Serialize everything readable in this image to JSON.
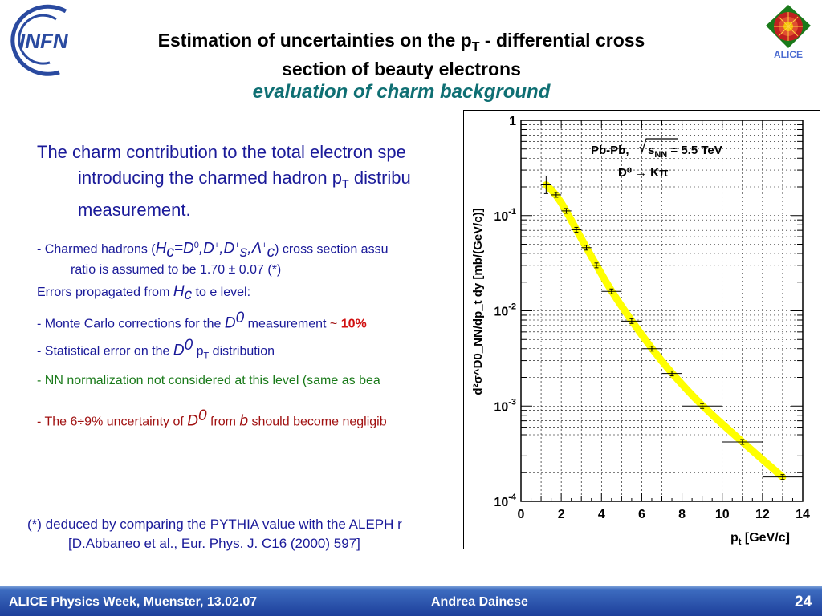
{
  "header": {
    "title_part1": "Estimation of uncertainties on the p",
    "title_sub": "T",
    "title_part2": " - differential cross",
    "title_line2": "section of beauty electrons",
    "subtitle": "evaluation of charm background",
    "infn_logo_text": "INFN",
    "alice_logo_text": "ALICE"
  },
  "main_text": {
    "line1": "The charm contribution to the total electron spe",
    "line2_a": "introducing the charmed hadron p",
    "line2_sub": "T",
    "line2_b": " distribu",
    "line3": "measurement."
  },
  "bullets": {
    "b1_prefix": "- Charmed hadrons (",
    "b1_hc": "H",
    "b1_hc_sub": "c",
    "b1_eq": "=D",
    "b1_sup0": "0",
    "b1_d": ",D",
    "b1_supplus": "+",
    "b1_d2": ",D",
    "b1_supplus2": "+",
    "b1_sub_s": "s",
    "b1_lambda": ",Λ",
    "b1_supplus3": "+",
    "b1_sub_c": "c",
    "b1_suffix": ") cross section assu",
    "b1_line2": "ratio is assumed to be 1.70 ± 0.07 (*)",
    "b2_prefix": "Errors propagated from ",
    "b2_h": "H",
    "b2_h_sub": "c",
    "b2_suffix": " to e level:",
    "b3_prefix": "- Monte Carlo corrections for the ",
    "b3_d": "D",
    "b3_sup": "0",
    "b3_mid": "  measurement ",
    "b3_tilde": "~ ",
    "b3_value": "10%",
    "b4_prefix": "- Statistical error on the ",
    "b4_d": "D",
    "b4_sup": "0",
    "b4_p": " p",
    "b4_p_sub": "T",
    "b4_suffix": " distribution",
    "b5": "- NN normalization not considered at this level (same as bea",
    "b6_prefix": "- The 6÷9% uncertainty of ",
    "b6_d": "D",
    "b6_sup": "0",
    "b6_from": " from ",
    "b6_b": "b",
    "b6_suffix": " should become negligib"
  },
  "footnote": {
    "line1": "(*) deduced by comparing the PYTHIA value with the ALEPH r",
    "line2": "[D.Abbaneo et al., Eur. Phys. J. C16 (2000) 597]"
  },
  "footer": {
    "left": "ALICE Physics Week, Muenster, 13.02.07",
    "center": "Andrea Dainese",
    "page": "24"
  },
  "colors": {
    "footer_bg": "#1d3f9a",
    "band": "#ffff00",
    "title_italic": "#0f6f73",
    "main_text": "#1a1a99"
  },
  "chart_data": {
    "type": "scatter",
    "x_scale": "linear",
    "y_scale": "log",
    "xlim": [
      0,
      14
    ],
    "ylim": [
      0.0001,
      1
    ],
    "x_ticks": [
      "0",
      "2",
      "4",
      "6",
      "8",
      "10",
      "12",
      "14"
    ],
    "y_tick_labels": [
      {
        "value": 1,
        "base": "1",
        "exp": ""
      },
      {
        "value": 0.1,
        "base": "10",
        "exp": "-1"
      },
      {
        "value": 0.01,
        "base": "10",
        "exp": "-2"
      },
      {
        "value": 0.001,
        "base": "10",
        "exp": "-3"
      },
      {
        "value": 0.0001,
        "base": "10",
        "exp": "-4"
      }
    ],
    "xlabel_main": "p",
    "xlabel_sub": "t",
    "xlabel_unit": " [GeV/c]",
    "ylabel": "d²σ^D0_NN/dp_t dy [mb/(GeV/c)]",
    "annotation_line1_prefix": "Pb-Pb, ",
    "annotation_line1_s": "s",
    "annotation_line1_sub": "NN",
    "annotation_line1_suffix": " = 5.5 TeV",
    "annotation_line2": "D⁰ → Kπ",
    "grid": true,
    "band_color": "#ffff00",
    "points": [
      {
        "x": 1.25,
        "xerr": 0.25,
        "y": 0.21,
        "yerr_up": 0.05,
        "yerr_down": 0.04
      },
      {
        "x": 1.75,
        "xerr": 0.25,
        "y": 0.165
      },
      {
        "x": 2.25,
        "xerr": 0.25,
        "y": 0.112
      },
      {
        "x": 2.75,
        "xerr": 0.25,
        "y": 0.071
      },
      {
        "x": 3.25,
        "xerr": 0.25,
        "y": 0.046
      },
      {
        "x": 3.75,
        "xerr": 0.25,
        "y": 0.03
      },
      {
        "x": 4.5,
        "xerr": 0.5,
        "y": 0.016
      },
      {
        "x": 5.5,
        "xerr": 0.5,
        "y": 0.0078
      },
      {
        "x": 6.5,
        "xerr": 0.5,
        "y": 0.004
      },
      {
        "x": 7.5,
        "xerr": 0.5,
        "y": 0.0022
      },
      {
        "x": 9.0,
        "xerr": 1.0,
        "y": 0.001
      },
      {
        "x": 11.0,
        "xerr": 1.0,
        "y": 0.00042
      },
      {
        "x": 13.0,
        "xerr": 1.0,
        "y": 0.00018
      }
    ]
  }
}
